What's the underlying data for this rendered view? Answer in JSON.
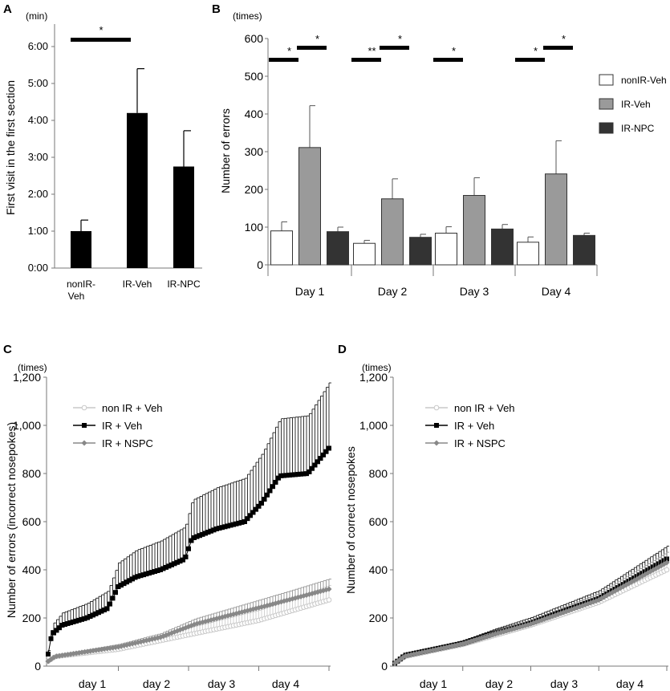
{
  "panel_labels": {
    "a": "A",
    "b": "B",
    "c": "C",
    "d": "D"
  },
  "chart_data": [
    {
      "id": "A",
      "type": "bar",
      "unit": "(min)",
      "ylabel": "First visit in the first section",
      "yticks": [
        "0:00",
        "1:00",
        "2:00",
        "3:00",
        "4:00",
        "5:00",
        "6:00"
      ],
      "ylim": [
        0,
        6.5
      ],
      "categories": [
        "nonIR-\nVeh",
        "IR-Veh",
        "IR-NPC"
      ],
      "values": [
        1.0,
        4.2,
        2.75
      ],
      "errors": [
        0.3,
        1.2,
        0.97
      ],
      "colors": [
        "#000000",
        "#000000",
        "#000000"
      ],
      "significance": [
        {
          "from": 0,
          "to": 1,
          "label": "*"
        }
      ]
    },
    {
      "id": "B",
      "type": "bar",
      "unit": "(times)",
      "ylabel": "Number of errors",
      "ylim": [
        0,
        600
      ],
      "yticks": [
        0,
        100,
        200,
        300,
        400,
        500,
        600
      ],
      "categories": [
        "Day 1",
        "Day 2",
        "Day 3",
        "Day 4"
      ],
      "legend": [
        {
          "name": "nonIR-Veh",
          "color": "#ffffff"
        },
        {
          "name": "IR-Veh",
          "color": "#9a9a9a"
        },
        {
          "name": "IR-NPC",
          "color": "#333333"
        }
      ],
      "series": [
        {
          "name": "nonIR-Veh",
          "values": [
            90,
            57,
            84,
            60
          ],
          "errors": [
            24,
            8,
            17,
            14
          ]
        },
        {
          "name": "IR-Veh",
          "values": [
            311,
            175,
            184,
            241
          ],
          "errors": [
            111,
            53,
            47,
            88
          ]
        },
        {
          "name": "IR-NPC",
          "values": [
            88,
            73,
            95,
            78
          ],
          "errors": [
            12,
            8,
            12,
            6
          ]
        }
      ],
      "significance": [
        {
          "day": 0,
          "from": 0,
          "to": 1,
          "label": "*"
        },
        {
          "day": 0,
          "from": 1,
          "to": 2,
          "label": "*"
        },
        {
          "day": 1,
          "from": 0,
          "to": 1,
          "label": "**"
        },
        {
          "day": 1,
          "from": 1,
          "to": 2,
          "label": "*"
        },
        {
          "day": 2,
          "from": 0,
          "to": 1,
          "label": "*"
        },
        {
          "day": 3,
          "from": 0,
          "to": 1,
          "label": "*"
        },
        {
          "day": 3,
          "from": 1,
          "to": 2,
          "label": "*"
        }
      ]
    },
    {
      "id": "C",
      "type": "line",
      "unit": "(times)",
      "ylabel": "Number of errors (incorrect nosepokes)",
      "ylim": [
        0,
        1200
      ],
      "yticks": [
        "0",
        "200",
        "400",
        "600",
        "800",
        "1,000",
        "1,200"
      ],
      "x_categories": [
        "day 1",
        "day 2",
        "day 3",
        "day 4"
      ],
      "points_per_day": 25,
      "series": [
        {
          "name": "non IR + Veh",
          "color": "#c8c8c8",
          "marker": "circle-open",
          "anchors": [
            [
              0,
              20
            ],
            [
              0.1,
              40
            ],
            [
              1,
              70
            ],
            [
              2,
              130
            ],
            [
              3,
              190
            ],
            [
              4,
              275
            ]
          ],
          "error_fraction": 0.22
        },
        {
          "name": "IR + Veh",
          "color": "#000000",
          "marker": "square",
          "anchors": [
            [
              0,
              50
            ],
            [
              0.05,
              130
            ],
            [
              0.2,
              170
            ],
            [
              0.55,
              200
            ],
            [
              0.85,
              240
            ],
            [
              1.0,
              330
            ],
            [
              1.25,
              370
            ],
            [
              1.6,
              400
            ],
            [
              1.95,
              445
            ],
            [
              2.05,
              530
            ],
            [
              2.4,
              570
            ],
            [
              2.8,
              600
            ],
            [
              3.05,
              680
            ],
            [
              3.3,
              790
            ],
            [
              3.7,
              800
            ],
            [
              4,
              905
            ]
          ],
          "error_fraction": 0.3
        },
        {
          "name": "IR + NSPC",
          "color": "#888888",
          "marker": "diamond",
          "anchors": [
            [
              0,
              20
            ],
            [
              0.1,
              40
            ],
            [
              1,
              80
            ],
            [
              1.6,
              120
            ],
            [
              2.1,
              175
            ],
            [
              3.1,
              250
            ],
            [
              4,
              320
            ]
          ],
          "error_fraction": 0.13
        }
      ]
    },
    {
      "id": "D",
      "type": "line",
      "unit": "(times)",
      "ylabel": "Number of correct nosepokes",
      "ylim": [
        0,
        1200
      ],
      "yticks": [
        "0",
        "200",
        "400",
        "600",
        "800",
        "1,000",
        "1,200"
      ],
      "x_categories": [
        "day 1",
        "day 2",
        "day 3",
        "day 4"
      ],
      "points_per_day": 25,
      "series": [
        {
          "name": "non IR + Veh",
          "color": "#c8c8c8",
          "marker": "circle-open",
          "anchors": [
            [
              0,
              10
            ],
            [
              0.15,
              40
            ],
            [
              1,
              90
            ],
            [
              1.5,
              130
            ],
            [
              2,
              170
            ],
            [
              3,
              265
            ],
            [
              4,
              400
            ]
          ],
          "error_fraction": 0.12
        },
        {
          "name": "IR + Veh",
          "color": "#000000",
          "marker": "square",
          "anchors": [
            [
              0,
              12
            ],
            [
              0.15,
              45
            ],
            [
              1,
              95
            ],
            [
              1.5,
              140
            ],
            [
              2,
              180
            ],
            [
              3,
              280
            ],
            [
              4,
              445
            ]
          ],
          "error_fraction": 0.12
        },
        {
          "name": "IR + NSPC",
          "color": "#888888",
          "marker": "diamond",
          "anchors": [
            [
              0,
              12
            ],
            [
              0.15,
              42
            ],
            [
              1,
              92
            ],
            [
              1.5,
              135
            ],
            [
              2,
              175
            ],
            [
              3,
              275
            ],
            [
              4,
              430
            ]
          ],
          "error_fraction": 0.1
        }
      ]
    }
  ]
}
